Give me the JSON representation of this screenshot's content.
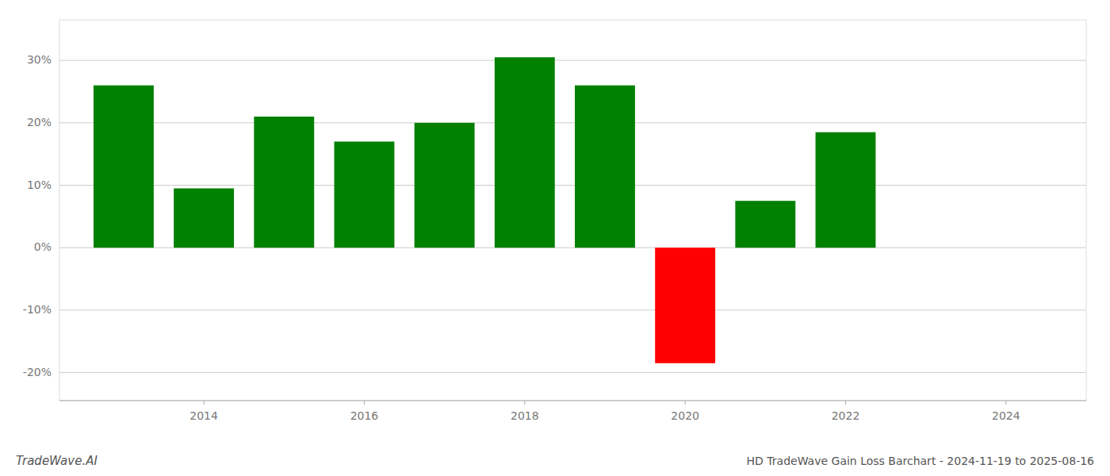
{
  "chart_data": {
    "type": "bar",
    "title": "HD TradeWave Gain Loss Barchart - 2024-11-19 to 2025-08-16",
    "annotations": [
      "TradeWave.AI"
    ],
    "x": [
      2013,
      2014,
      2015,
      2016,
      2017,
      2018,
      2019,
      2020,
      2021,
      2022
    ],
    "values": [
      0.26,
      0.095,
      0.21,
      0.17,
      0.2,
      0.305,
      0.26,
      -0.185,
      0.075,
      0.185
    ],
    "colors": [
      "#008000",
      "#008000",
      "#008000",
      "#008000",
      "#008000",
      "#008000",
      "#008000",
      "#ff0000",
      "#008000",
      "#008000"
    ],
    "xlim": [
      2012.2,
      2025.0
    ],
    "xticks": [
      2014,
      2016,
      2018,
      2020,
      2022,
      2024
    ],
    "ylim": [
      -0.245,
      0.365
    ],
    "yticks": [
      {
        "value": -0.2,
        "label": "-20%"
      },
      {
        "value": -0.1,
        "label": "-10%"
      },
      {
        "value": 0.0,
        "label": "0%"
      },
      {
        "value": 0.1,
        "label": "10%"
      },
      {
        "value": 0.2,
        "label": "20%"
      },
      {
        "value": 0.3,
        "label": "30%"
      }
    ],
    "grid": true
  }
}
